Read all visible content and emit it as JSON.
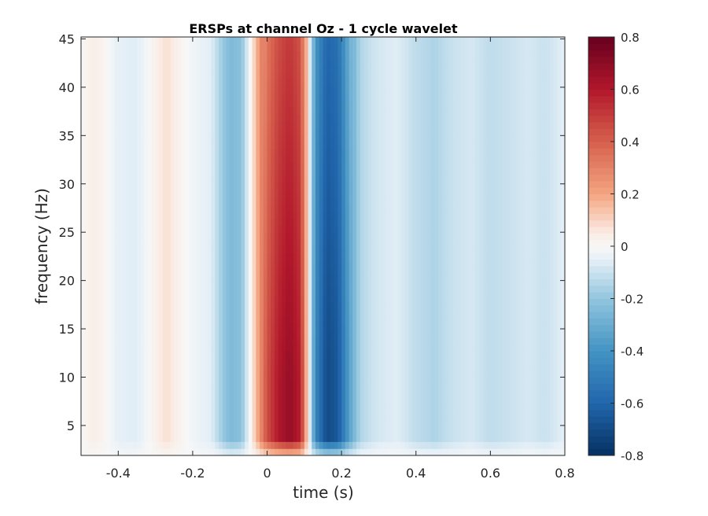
{
  "chart_data": {
    "type": "heatmap",
    "title": "ERSPs at channel Oz - 1 cycle wavelet",
    "xlabel": "time (s)",
    "ylabel": "frequency (Hz)",
    "xlim": [
      -0.5,
      0.8
    ],
    "ylim": [
      1.9,
      45.2
    ],
    "x_ticks": [
      -0.4,
      -0.2,
      0,
      0.2,
      0.4,
      0.6,
      0.8
    ],
    "x_tick_labels": [
      "-0.4",
      "-0.2",
      "0",
      "0.2",
      "0.4",
      "0.6",
      "0.8"
    ],
    "y_ticks": [
      5,
      10,
      15,
      20,
      25,
      30,
      35,
      40,
      45
    ],
    "y_tick_labels": [
      "5",
      "10",
      "15",
      "20",
      "25",
      "30",
      "35",
      "40",
      "45"
    ],
    "colormap": "red-white-blue (diverging)",
    "clim": [
      -0.8,
      0.8
    ],
    "colorbar_ticks": [
      0.8,
      0.6,
      0.4,
      0.2,
      0,
      -0.2,
      -0.4,
      -0.6,
      -0.8
    ],
    "colorbar_tick_labels": [
      "0.8",
      "0.6",
      "0.4",
      "0.2",
      "0",
      "-0.2",
      "-0.4",
      "-0.6",
      "-0.8"
    ],
    "time_profile": {
      "time_s": [
        -0.5,
        -0.47,
        -0.44,
        -0.4,
        -0.35,
        -0.3,
        -0.27,
        -0.24,
        -0.2,
        -0.15,
        -0.12,
        -0.1,
        -0.07,
        -0.04,
        0.0,
        0.03,
        0.06,
        0.09,
        0.11,
        0.13,
        0.16,
        0.19,
        0.22,
        0.25,
        0.28,
        0.3,
        0.35,
        0.4,
        0.45,
        0.5,
        0.55,
        0.6,
        0.65,
        0.7,
        0.75,
        0.8
      ],
      "ersp": [
        0.0,
        0.04,
        0.02,
        -0.05,
        -0.06,
        0.03,
        0.08,
        0.03,
        -0.02,
        -0.06,
        -0.18,
        -0.25,
        -0.22,
        0.05,
        0.45,
        0.6,
        0.68,
        0.58,
        0.05,
        -0.45,
        -0.7,
        -0.65,
        -0.35,
        -0.15,
        -0.1,
        -0.08,
        -0.06,
        -0.12,
        -0.15,
        -0.1,
        -0.08,
        -0.12,
        -0.1,
        -0.08,
        -0.1,
        -0.05
      ]
    },
    "notes_peak": {
      "positive_max": 0.7,
      "positive_at_time_s": 0.08,
      "positive_at_freq_hz": 8,
      "negative_min": -0.72,
      "negative_at_time_s": 0.17,
      "negative_at_freq_hz": 10
    }
  }
}
